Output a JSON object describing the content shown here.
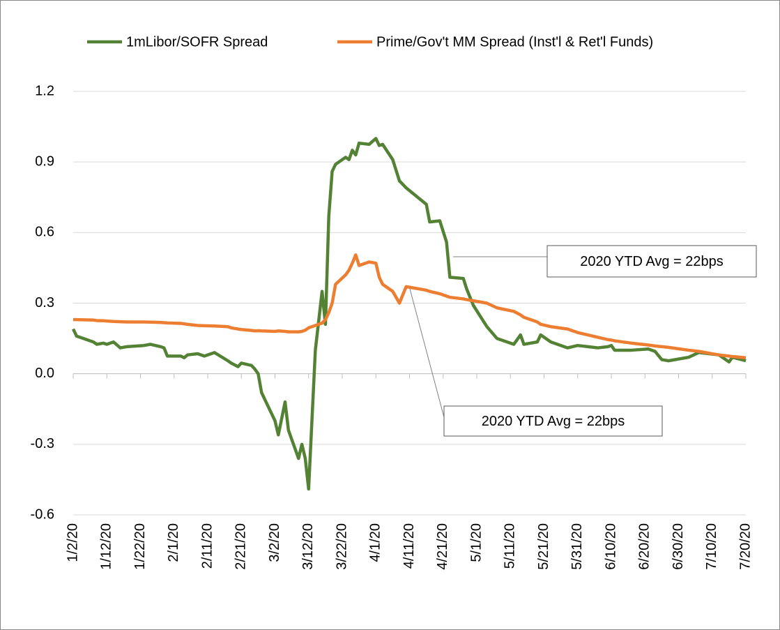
{
  "chart_data": {
    "type": "line",
    "x": [
      "1/2/20",
      "1/3/20",
      "1/6/20",
      "1/8/20",
      "1/9/20",
      "1/11/20",
      "1/12/20",
      "1/14/20",
      "1/16/20",
      "1/18/20",
      "1/23/20",
      "1/25/20",
      "1/28/20",
      "1/29/20",
      "1/30/20",
      "2/3/20",
      "2/4/20",
      "2/5/20",
      "2/8/20",
      "2/10/20",
      "2/13/20",
      "2/17/20",
      "2/18/20",
      "2/20/20",
      "2/21/20",
      "2/24/20",
      "2/25/20",
      "2/26/20",
      "2/27/20",
      "3/2/20",
      "3/3/20",
      "3/5/20",
      "3/6/20",
      "3/9/20",
      "3/10/20",
      "3/11/20",
      "3/12/20",
      "3/14/20",
      "3/16/20",
      "3/17/20",
      "3/18/20",
      "3/19/20",
      "3/20/20",
      "3/23/20",
      "3/24/20",
      "3/25/20",
      "3/26/20",
      "3/27/20",
      "3/30/20",
      "4/1/20",
      "4/2/20",
      "4/3/20",
      "4/6/20",
      "4/8/20",
      "4/10/20",
      "4/16/20",
      "4/17/20",
      "4/20/20",
      "4/22/20",
      "4/23/20",
      "4/27/20",
      "4/28/20",
      "4/30/20",
      "5/4/20",
      "5/7/20",
      "5/12/20",
      "5/14/20",
      "5/15/20",
      "5/19/20",
      "5/20/20",
      "5/23/20",
      "5/28/20",
      "5/31/20",
      "6/3/20",
      "6/6/20",
      "6/9/20",
      "6/10/20",
      "6/11/20",
      "6/16/20",
      "6/21/20",
      "6/23/20",
      "6/25/20",
      "6/27/20",
      "7/3/20",
      "7/6/20",
      "7/12/20",
      "7/15/20",
      "7/16/20",
      "7/20/20"
    ],
    "series": [
      {
        "name": "1mLibor/SOFR Spread",
        "color": "#548235",
        "values": [
          0.19,
          0.16,
          0.145,
          0.135,
          0.125,
          0.13,
          0.125,
          0.135,
          0.11,
          0.115,
          0.12,
          0.125,
          0.115,
          0.11,
          0.075,
          0.075,
          0.068,
          0.08,
          0.085,
          0.075,
          0.09,
          0.055,
          0.045,
          0.03,
          0.045,
          0.035,
          0.02,
          0.0,
          -0.08,
          -0.2,
          -0.26,
          -0.12,
          -0.24,
          -0.36,
          -0.3,
          -0.36,
          -0.49,
          0.1,
          0.35,
          0.21,
          0.67,
          0.86,
          0.89,
          0.92,
          0.91,
          0.95,
          0.93,
          0.98,
          0.975,
          1.0,
          0.97,
          0.975,
          0.91,
          0.82,
          0.79,
          0.72,
          0.645,
          0.65,
          0.56,
          0.41,
          0.405,
          0.36,
          0.29,
          0.2,
          0.15,
          0.125,
          0.165,
          0.125,
          0.135,
          0.165,
          0.135,
          0.11,
          0.12,
          0.115,
          0.11,
          0.115,
          0.12,
          0.1,
          0.1,
          0.105,
          0.095,
          0.06,
          0.055,
          0.07,
          0.09,
          0.08,
          0.05,
          0.07,
          0.055
        ]
      },
      {
        "name": "Prime/Gov't MM Spread (Inst'l & Ret'l Funds)",
        "color": "#ed7d31",
        "values": [
          0.23,
          0.23,
          0.229,
          0.228,
          0.226,
          0.225,
          0.224,
          0.222,
          0.221,
          0.22,
          0.22,
          0.219,
          0.218,
          0.217,
          0.216,
          0.214,
          0.212,
          0.21,
          0.205,
          0.204,
          0.203,
          0.2,
          0.195,
          0.19,
          0.188,
          0.184,
          0.182,
          0.183,
          0.182,
          0.18,
          0.182,
          0.18,
          0.178,
          0.178,
          0.18,
          0.185,
          0.195,
          0.205,
          0.215,
          0.23,
          0.26,
          0.3,
          0.38,
          0.42,
          0.44,
          0.47,
          0.505,
          0.46,
          0.475,
          0.47,
          0.41,
          0.38,
          0.35,
          0.3,
          0.37,
          0.355,
          0.35,
          0.34,
          0.33,
          0.325,
          0.318,
          0.315,
          0.31,
          0.3,
          0.28,
          0.265,
          0.25,
          0.24,
          0.22,
          0.21,
          0.2,
          0.19,
          0.175,
          0.165,
          0.155,
          0.145,
          0.143,
          0.14,
          0.13,
          0.122,
          0.118,
          0.115,
          0.112,
          0.1,
          0.095,
          0.08,
          0.075,
          0.073,
          0.068
        ]
      }
    ],
    "xlim": [
      "1/2/20",
      "7/20/20"
    ],
    "xticks": [
      "1/2/20",
      "1/12/20",
      "1/22/20",
      "2/1/20",
      "2/11/20",
      "2/21/20",
      "3/2/20",
      "3/12/20",
      "3/22/20",
      "4/1/20",
      "4/11/20",
      "4/21/20",
      "5/1/20",
      "5/11/20",
      "5/21/20",
      "5/31/20",
      "6/10/20",
      "6/20/20",
      "6/30/20",
      "7/10/20",
      "7/20/20"
    ],
    "ylim": [
      -0.6,
      1.2
    ],
    "yticks": [
      -0.6,
      -0.3,
      {
        "value": 0,
        "label": "0.0"
      },
      0.3,
      0.6,
      0.9,
      1.2
    ],
    "grid": true,
    "legend": "top",
    "annotations": [
      {
        "text": "2020 YTD Avg = 22bps"
      },
      {
        "text": "2020 YTD Avg = 22bps"
      }
    ]
  }
}
